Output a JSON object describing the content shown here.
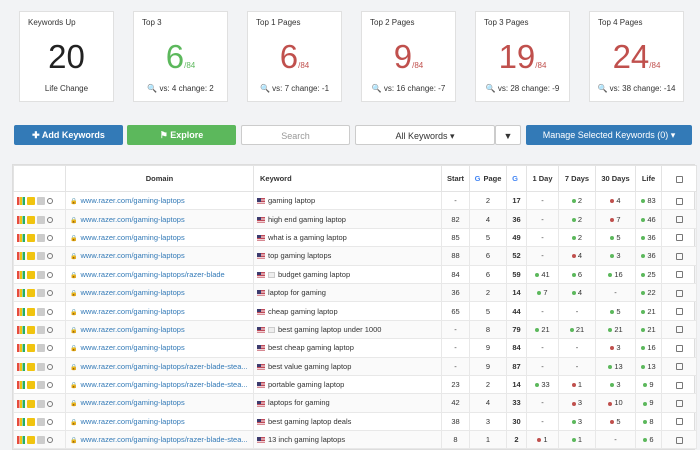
{
  "cards": [
    {
      "title": "Keywords Up",
      "value": "20",
      "of": "",
      "sub": "Life Change",
      "color": "black"
    },
    {
      "title": "Top 3",
      "value": "6",
      "of": "/84",
      "sub": "vs: 4 change: 2",
      "color": "green"
    },
    {
      "title": "Top 1 Pages",
      "value": "6",
      "of": "/84",
      "sub": "vs: 7 change: -1",
      "color": "red"
    },
    {
      "title": "Top 2 Pages",
      "value": "9",
      "of": "/84",
      "sub": "vs: 16 change: -7",
      "color": "red"
    },
    {
      "title": "Top 3 Pages",
      "value": "19",
      "of": "/84",
      "sub": "vs: 28 change: -9",
      "color": "red"
    },
    {
      "title": "Top 4 Pages",
      "value": "24",
      "of": "/84",
      "sub": "vs: 38 change: -14",
      "color": "red"
    }
  ],
  "toolbar": {
    "add": "Add Keywords",
    "explore": "Explore",
    "search_placeholder": "Search",
    "all_keywords": "All Keywords ▾",
    "filter_icon": "filter-icon",
    "manage": "Manage Selected Keywords (0) ▾"
  },
  "headers": {
    "domain": "Domain",
    "keyword": "Keyword",
    "start": "Start",
    "page": "Page",
    "g": "G",
    "day1": "1 Day",
    "day7": "7 Days",
    "day30": "30 Days",
    "life": "Life"
  },
  "rows": [
    {
      "domain": "www.razer.com/gaming-laptops",
      "kw": "gaming laptop",
      "flag": "us",
      "start": "-",
      "page": "2",
      "g": "17",
      "d1": [
        "-",
        ""
      ],
      "d7": [
        "2",
        "g"
      ],
      "d30": [
        "4",
        "r"
      ],
      "life": [
        "83",
        "g"
      ]
    },
    {
      "domain": "www.razer.com/gaming-laptops",
      "kw": "high end gaming laptop",
      "flag": "us",
      "start": "82",
      "page": "4",
      "g": "36",
      "d1": [
        "-",
        ""
      ],
      "d7": [
        "2",
        "g"
      ],
      "d30": [
        "7",
        "r"
      ],
      "life": [
        "46",
        "g"
      ]
    },
    {
      "domain": "www.razer.com/gaming-laptops",
      "kw": "what is a gaming laptop",
      "flag": "us",
      "start": "85",
      "page": "5",
      "g": "49",
      "d1": [
        "-",
        ""
      ],
      "d7": [
        "2",
        "g"
      ],
      "d30": [
        "5",
        "g"
      ],
      "life": [
        "36",
        "g"
      ]
    },
    {
      "domain": "www.razer.com/gaming-laptops",
      "kw": "top gaming laptops",
      "flag": "us",
      "start": "88",
      "page": "6",
      "g": "52",
      "d1": [
        "-",
        ""
      ],
      "d7": [
        "4",
        "r"
      ],
      "d30": [
        "3",
        "g"
      ],
      "life": [
        "36",
        "g"
      ]
    },
    {
      "domain": "www.razer.com/gaming-laptops/razer-blade",
      "kw": "budget gaming laptop",
      "flag": "usuk",
      "start": "84",
      "page": "6",
      "g": "59",
      "d1": [
        "41",
        "g"
      ],
      "d7": [
        "6",
        "g"
      ],
      "d30": [
        "16",
        "g"
      ],
      "life": [
        "25",
        "g"
      ]
    },
    {
      "domain": "www.razer.com/gaming-laptops",
      "kw": "laptop for gaming",
      "flag": "us",
      "start": "36",
      "page": "2",
      "g": "14",
      "d1": [
        "7",
        "g"
      ],
      "d7": [
        "4",
        "g"
      ],
      "d30": [
        "-",
        ""
      ],
      "life": [
        "22",
        "g"
      ]
    },
    {
      "domain": "www.razer.com/gaming-laptops",
      "kw": "cheap gaming laptop",
      "flag": "us",
      "start": "65",
      "page": "5",
      "g": "44",
      "d1": [
        "-",
        ""
      ],
      "d7": [
        "-",
        ""
      ],
      "d30": [
        "5",
        "g"
      ],
      "life": [
        "21",
        "g"
      ]
    },
    {
      "domain": "www.razer.com/gaming-laptops",
      "kw": "best gaming laptop under 1000",
      "flag": "usuk",
      "start": "-",
      "page": "8",
      "g": "79",
      "d1": [
        "21",
        "g"
      ],
      "d7": [
        "21",
        "g"
      ],
      "d30": [
        "21",
        "g"
      ],
      "life": [
        "21",
        "g"
      ]
    },
    {
      "domain": "www.razer.com/gaming-laptops",
      "kw": "best cheap gaming laptop",
      "flag": "us",
      "start": "-",
      "page": "9",
      "g": "84",
      "d1": [
        "-",
        ""
      ],
      "d7": [
        "-",
        ""
      ],
      "d30": [
        "3",
        "r"
      ],
      "life": [
        "16",
        "g"
      ]
    },
    {
      "domain": "www.razer.com/gaming-laptops/razer-blade-stea...",
      "kw": "best value gaming laptop",
      "flag": "us",
      "start": "-",
      "page": "9",
      "g": "87",
      "d1": [
        "-",
        ""
      ],
      "d7": [
        "-",
        ""
      ],
      "d30": [
        "13",
        "g"
      ],
      "life": [
        "13",
        "g"
      ]
    },
    {
      "domain": "www.razer.com/gaming-laptops/razer-blade-stea...",
      "kw": "portable gaming laptop",
      "flag": "us",
      "start": "23",
      "page": "2",
      "g": "14",
      "d1": [
        "33",
        "g"
      ],
      "d7": [
        "1",
        "r"
      ],
      "d30": [
        "3",
        "g"
      ],
      "life": [
        "9",
        "g"
      ]
    },
    {
      "domain": "www.razer.com/gaming-laptops",
      "kw": "laptops for gaming",
      "flag": "us",
      "start": "42",
      "page": "4",
      "g": "33",
      "d1": [
        "-",
        ""
      ],
      "d7": [
        "3",
        "r"
      ],
      "d30": [
        "10",
        "r"
      ],
      "life": [
        "9",
        "g"
      ]
    },
    {
      "domain": "www.razer.com/gaming-laptops",
      "kw": "best gaming laptop deals",
      "flag": "us",
      "start": "38",
      "page": "3",
      "g": "30",
      "d1": [
        "-",
        ""
      ],
      "d7": [
        "3",
        "g"
      ],
      "d30": [
        "5",
        "r"
      ],
      "life": [
        "8",
        "g"
      ]
    },
    {
      "domain": "www.razer.com/gaming-laptops/razer-blade-stea...",
      "kw": "13 inch gaming laptops",
      "flag": "us",
      "start": "8",
      "page": "1",
      "g": "2",
      "d1": [
        "1",
        "r"
      ],
      "d7": [
        "1",
        "g"
      ],
      "d30": [
        "-",
        ""
      ],
      "life": [
        "6",
        "g"
      ]
    }
  ]
}
